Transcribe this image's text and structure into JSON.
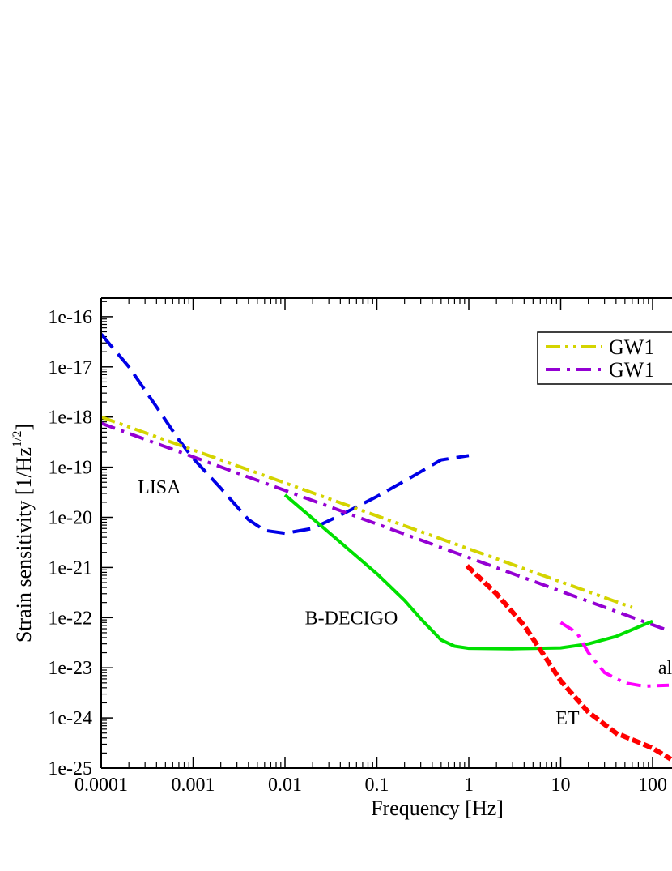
{
  "chart_data": {
    "type": "line",
    "xlabel": "Frequency [Hz]",
    "ylabel": "Strain sensitivity [1/Hz^1/2]",
    "xscale": "log",
    "yscale": "log",
    "xlim": [
      0.0001,
      150
    ],
    "ylim": [
      1e-25,
      1.6e-16
    ],
    "x_ticks": [
      {
        "value": 0.0001,
        "label": "0.0001"
      },
      {
        "value": 0.001,
        "label": "0.001"
      },
      {
        "value": 0.01,
        "label": "0.01"
      },
      {
        "value": 0.1,
        "label": "0.1"
      },
      {
        "value": 1,
        "label": "1"
      },
      {
        "value": 10,
        "label": "10"
      },
      {
        "value": 100,
        "label": "100"
      }
    ],
    "y_ticks": [
      {
        "value": 1e-16,
        "label": "1e-16"
      },
      {
        "value": 1e-17,
        "label": "1e-17"
      },
      {
        "value": 1e-18,
        "label": "1e-18"
      },
      {
        "value": 1e-19,
        "label": "1e-19"
      },
      {
        "value": 1e-20,
        "label": "1e-20"
      },
      {
        "value": 1e-21,
        "label": "1e-21"
      },
      {
        "value": 1e-22,
        "label": "1e-22"
      },
      {
        "value": 1e-23,
        "label": "1e-23"
      },
      {
        "value": 1e-24,
        "label": "1e-24"
      },
      {
        "value": 1e-25,
        "label": "1e-25"
      }
    ],
    "legend": {
      "placement": "top-right",
      "entries": [
        {
          "label": "GW1",
          "color": "#d4d400",
          "dash": "dash-dot-dot"
        },
        {
          "label": "GW1",
          "color": "#9400d3",
          "dash": "dash-dot"
        }
      ]
    },
    "series": [
      {
        "id": "lisa",
        "color": "#0000e6",
        "dash": "dashed",
        "points": [
          [
            0.0001,
            4.5e-17
          ],
          [
            0.0002,
            1e-17
          ],
          [
            0.0004,
            1.6e-18
          ],
          [
            0.0007,
            3.5e-19
          ],
          [
            0.001,
            1.5e-19
          ],
          [
            0.002,
            3.8e-20
          ],
          [
            0.004,
            9e-21
          ],
          [
            0.006,
            5.5e-21
          ],
          [
            0.01,
            4.8e-21
          ],
          [
            0.02,
            6e-21
          ],
          [
            0.04,
            1.1e-20
          ],
          [
            0.1,
            2.6e-20
          ],
          [
            0.2,
            5.3e-20
          ],
          [
            0.5,
            1.4e-19
          ],
          [
            1.0,
            1.7e-19
          ]
        ]
      },
      {
        "id": "gw-yellow",
        "color": "#d4d400",
        "dash": "dash-dot-dot",
        "points": [
          [
            0.0001,
            1e-18
          ],
          [
            60,
            1.6e-22
          ]
        ]
      },
      {
        "id": "gw-purple",
        "color": "#9400d3",
        "dash": "dash-dot",
        "points": [
          [
            0.0001,
            7.5e-19
          ],
          [
            150,
            5.5e-23
          ]
        ]
      },
      {
        "id": "b-decigo",
        "color": "#00e000",
        "dash": "solid",
        "points": [
          [
            0.01,
            2.8e-20
          ],
          [
            0.03,
            5e-21
          ],
          [
            0.1,
            7.5e-22
          ],
          [
            0.2,
            2.2e-22
          ],
          [
            0.3,
            9.5e-23
          ],
          [
            0.4,
            5.5e-23
          ],
          [
            0.5,
            3.6e-23
          ],
          [
            0.7,
            2.7e-23
          ],
          [
            1.0,
            2.45e-23
          ],
          [
            3,
            2.4e-23
          ],
          [
            10,
            2.5e-23
          ],
          [
            20,
            3e-23
          ],
          [
            40,
            4.2e-23
          ],
          [
            70,
            6.5e-23
          ],
          [
            100,
            8.5e-23
          ]
        ]
      },
      {
        "id": "et",
        "color": "#ff0000",
        "dash": "dotted",
        "points": [
          [
            1.0,
            1e-21
          ],
          [
            2,
            3e-22
          ],
          [
            4,
            7e-23
          ],
          [
            7,
            1.5e-23
          ],
          [
            10,
            5.5e-24
          ],
          [
            20,
            1.3e-24
          ],
          [
            40,
            5e-25
          ],
          [
            70,
            3.3e-25
          ],
          [
            100,
            2.5e-25
          ],
          [
            150,
            1.6e-25
          ]
        ]
      },
      {
        "id": "aligo",
        "color": "#ff00ff",
        "dash": "dash-dot",
        "points": [
          [
            10,
            8e-23
          ],
          [
            15,
            5e-23
          ],
          [
            20,
            2e-23
          ],
          [
            30,
            8e-24
          ],
          [
            50,
            5e-24
          ],
          [
            80,
            4.3e-24
          ],
          [
            150,
            4.5e-24
          ]
        ]
      }
    ],
    "curve_labels": [
      {
        "text": "LISA",
        "x": 0.00025,
        "y": 4e-20
      },
      {
        "text": "B-DECIGO",
        "x": 0.0165,
        "y": 1e-22
      },
      {
        "text": "ET",
        "x": 8.8,
        "y": 1e-24
      },
      {
        "text": "al",
        "x": 115,
        "y": 1e-23
      }
    ]
  }
}
